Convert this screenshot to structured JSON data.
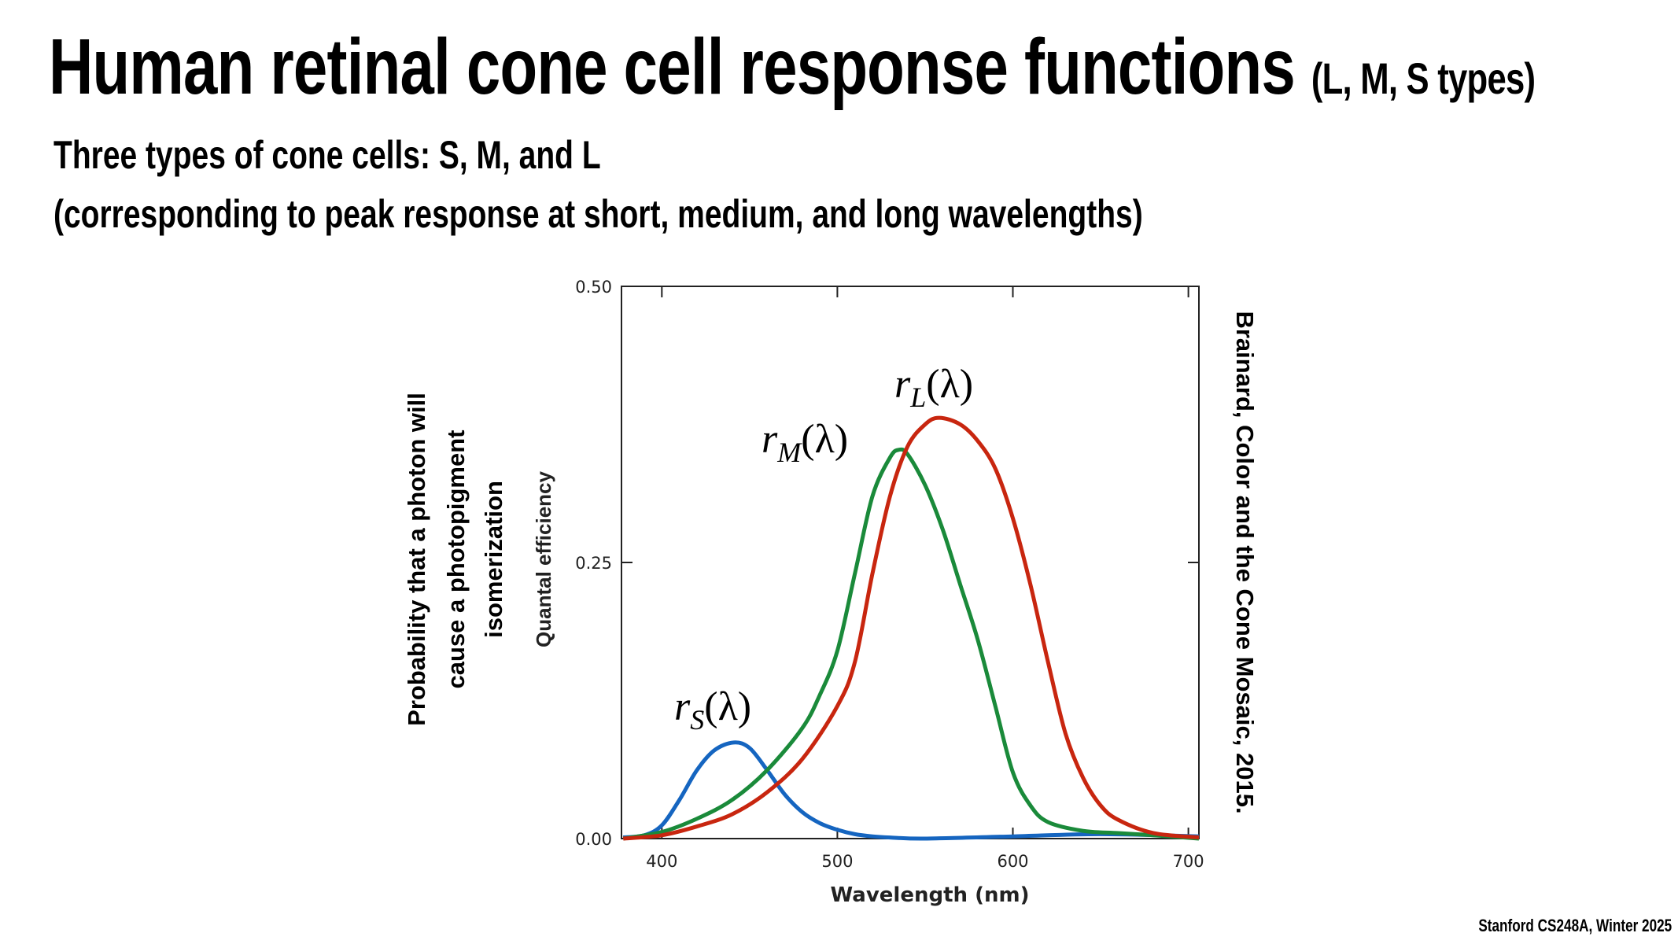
{
  "title": {
    "main": "Human retinal cone cell response functions",
    "suffix": "(L, M, S types)"
  },
  "subtitle_1": "Three types of cone cells: S, M, and L",
  "subtitle_2": "(corresponding to peak response at short, medium, and long wavelengths)",
  "side_label_lines": [
    "Probability  that a photon will",
    "cause a photopigment",
    "isomerization"
  ],
  "citation": "Brainard, Color and the Cone Mosaic, 2015.",
  "footer": "Stanford CS248A, Winter 2025",
  "chart_data": {
    "type": "line",
    "xlabel": "Wavelength (nm)",
    "ylabel": "Quantal efficiency",
    "xlim": [
      377,
      706
    ],
    "ylim": [
      0,
      0.5
    ],
    "xticks": [
      400,
      500,
      600,
      700
    ],
    "yticks": [
      "0.00",
      "0.25",
      "0.50"
    ],
    "grid": false,
    "series": [
      {
        "name": "r_S(λ)",
        "label_main": "r",
        "label_sub": "S",
        "label_arg": "(λ)",
        "color": "#1565c0",
        "x": [
          378,
          390,
          400,
          410,
          420,
          430,
          441,
          450,
          460,
          470,
          480,
          490,
          500,
          510,
          520,
          530,
          550,
          600,
          650,
          706
        ],
        "y": [
          0.001,
          0.003,
          0.012,
          0.035,
          0.062,
          0.08,
          0.087,
          0.082,
          0.062,
          0.04,
          0.024,
          0.014,
          0.008,
          0.004,
          0.002,
          0.001,
          0.0,
          0.002,
          0.004,
          0.002
        ]
      },
      {
        "name": "r_M(λ)",
        "label_main": "r",
        "label_sub": "M",
        "label_arg": "(λ)",
        "color": "#1a8a3a",
        "x": [
          378,
          400,
          420,
          440,
          460,
          480,
          490,
          500,
          510,
          520,
          530,
          535,
          540,
          550,
          560,
          570,
          580,
          590,
          600,
          610,
          620,
          640,
          660,
          680,
          706
        ],
        "y": [
          0.0,
          0.006,
          0.018,
          0.035,
          0.062,
          0.1,
          0.13,
          0.17,
          0.24,
          0.31,
          0.345,
          0.352,
          0.348,
          0.32,
          0.28,
          0.23,
          0.18,
          0.12,
          0.06,
          0.03,
          0.015,
          0.007,
          0.005,
          0.003,
          0.0
        ]
      },
      {
        "name": "r_L(λ)",
        "label_main": "r",
        "label_sub": "L",
        "label_arg": "(λ)",
        "color": "#c8260f",
        "x": [
          378,
          400,
          420,
          440,
          460,
          480,
          500,
          510,
          520,
          530,
          540,
          550,
          558,
          570,
          580,
          590,
          600,
          610,
          620,
          630,
          640,
          650,
          660,
          680,
          706
        ],
        "y": [
          0.0,
          0.003,
          0.011,
          0.022,
          0.042,
          0.072,
          0.12,
          0.16,
          0.24,
          0.31,
          0.355,
          0.375,
          0.381,
          0.375,
          0.36,
          0.335,
          0.29,
          0.23,
          0.16,
          0.095,
          0.055,
          0.03,
          0.017,
          0.005,
          0.001
        ]
      }
    ]
  }
}
